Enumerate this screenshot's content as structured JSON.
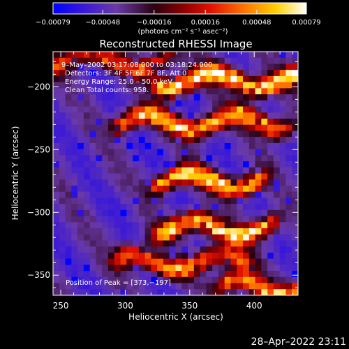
{
  "chart_data": {
    "type": "heatmap",
    "title": "Reconstructed RHESSI Image",
    "xlabel": "Heliocentric X (arcsec)",
    "ylabel": "Heliocentric Y (arcsec)",
    "xlim": [
      244,
      434
    ],
    "ylim": [
      -366,
      -172
    ],
    "xticks": [
      250,
      300,
      350,
      400
    ],
    "xtick_labels": [
      "250",
      "300",
      "350",
      "400"
    ],
    "yticks": [
      -200,
      -250,
      -300,
      -350
    ],
    "ytick_labels": [
      "−200",
      "−250",
      "−300",
      "−350"
    ],
    "colorbar": {
      "range": [
        -0.00079,
        0.00079
      ],
      "ticks": [
        -0.00079,
        -0.00048,
        -0.00016,
        0.00016,
        0.00048,
        0.00079
      ],
      "tick_labels": [
        "−0.00079",
        "−0.00048",
        "−0.00016",
        "0.00016",
        "0.00048",
        "0.00079"
      ],
      "unit_label": "(photons cm⁻² s⁻¹ asec⁻²)",
      "colors": [
        "#0000ff",
        "#3a18d8",
        "#6a3aa8",
        "#1a0000",
        "#c00000",
        "#ff3000",
        "#ff9000",
        "#ffe000",
        "#ffffff"
      ]
    },
    "annotations": {
      "time_range": "9–May–2002 03:17:08.000 to 03:18:24.000",
      "detectors": "Detectors: 3F 4F 5F 6F 7F 8F, Att 0",
      "energy_range": "Energy Range: 25.0 – 50.0 keV",
      "clean_counts": "Clean    Total counts: 958.",
      "peak": "Position of Peak = [373,−197]"
    },
    "peak_position": [
      373,
      -197
    ],
    "bright_bands": [
      {
        "x_range": [
          330,
          434
        ],
        "y_center": -195,
        "strength": 1.0
      },
      {
        "x_range": [
          300,
          420
        ],
        "y_center": -228,
        "strength": 0.85
      },
      {
        "x_range": [
          330,
          400
        ],
        "y_center": -275,
        "strength": 0.95
      },
      {
        "x_range": [
          330,
          410
        ],
        "y_center": -313,
        "strength": 0.9
      },
      {
        "x_range": [
          300,
          390
        ],
        "y_center": -340,
        "strength": 0.75
      },
      {
        "x_range": [
          380,
          434
        ],
        "y_center": -360,
        "strength": 0.8
      },
      {
        "x_range": [
          244,
          330
        ],
        "y_center": -180,
        "strength": 0.6
      }
    ]
  },
  "footer": {
    "timestamp": "28–Apr–2022 23:11"
  }
}
